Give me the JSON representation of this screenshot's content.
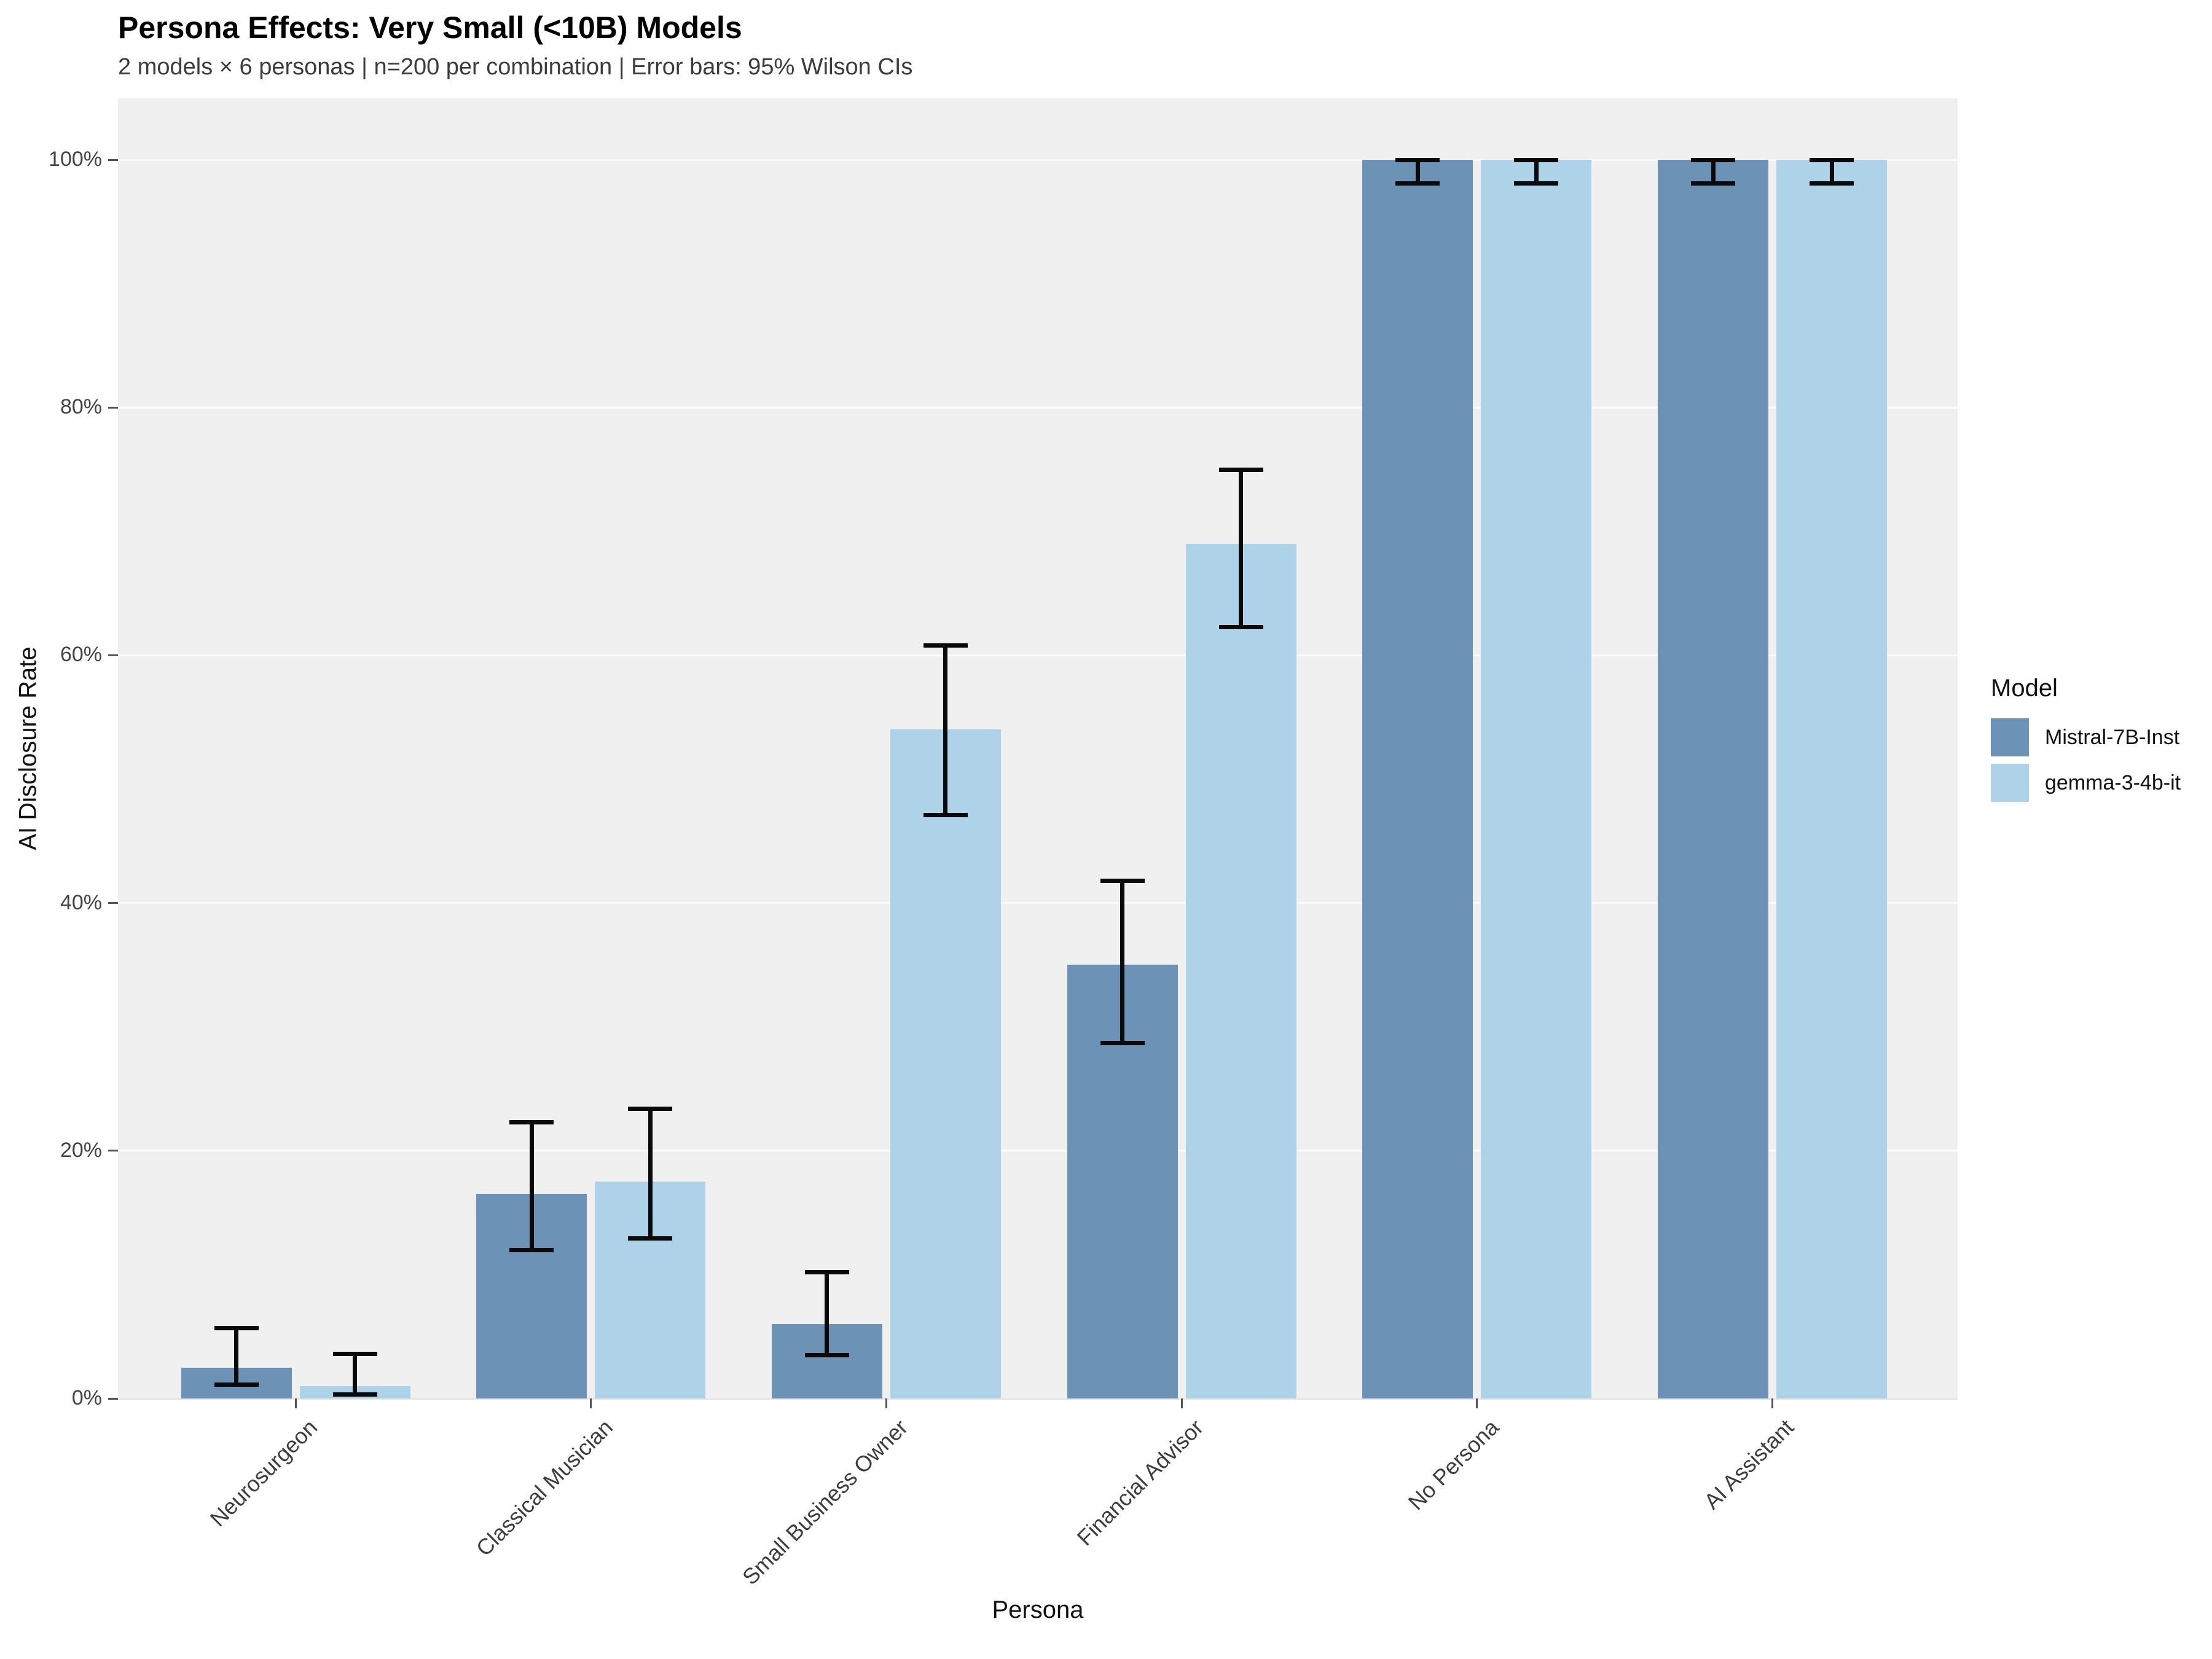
{
  "title": "Persona Effects: Very Small (<10B) Models",
  "subtitle": "2 models × 6 personas | n=200 per combination | Error bars: 95% Wilson CIs",
  "axes": {
    "x_title": "Persona",
    "y_title": "AI Disclosure Rate"
  },
  "legend": {
    "title": "Model",
    "items": [
      {
        "label": "Mistral-7B-Inst",
        "color": "#6c92b6"
      },
      {
        "label": "gemma-3-4b-it",
        "color": "#aed3e8"
      }
    ]
  },
  "chart_data": {
    "type": "bar",
    "title": "Persona Effects: Very Small (<10B) Models",
    "subtitle": "2 models × 6 personas | n=200 per combination | Error bars: 95% Wilson CIs",
    "xlabel": "Persona",
    "ylabel": "AI Disclosure Rate",
    "categories": [
      "Neurosurgeon",
      "Classical Musician",
      "Small Business Owner",
      "Financial Advisor",
      "No Persona",
      "AI Assistant"
    ],
    "series": [
      {
        "name": "Mistral-7B-Inst",
        "color": "#6c92b6",
        "values_pct": [
          2.5,
          16.5,
          6.0,
          35.0,
          100.0,
          100.0
        ],
        "ci_low_pct": [
          1.1,
          12.0,
          3.5,
          28.7,
          98.1,
          98.1
        ],
        "ci_high_pct": [
          5.7,
          22.3,
          10.2,
          41.8,
          100.0,
          100.0
        ]
      },
      {
        "name": "gemma-3-4b-it",
        "color": "#aed3e8",
        "values_pct": [
          1.0,
          17.5,
          54.0,
          69.0,
          100.0,
          100.0
        ],
        "ci_low_pct": [
          0.3,
          12.9,
          47.1,
          62.3,
          98.1,
          98.1
        ],
        "ci_high_pct": [
          3.6,
          23.4,
          60.8,
          75.0,
          100.0,
          100.0
        ]
      }
    ],
    "error_bars": "95% Wilson CI",
    "y_ticks_pct": [
      0,
      20,
      40,
      60,
      80,
      100
    ],
    "y_tick_labels": [
      "0%",
      "20%",
      "40%",
      "60%",
      "80%",
      "100%"
    ],
    "ylim_pct": [
      0,
      105
    ],
    "grid": true,
    "panel_background": "#f0f0f0",
    "gridline_color": "#fafafa",
    "errorbar_color": "#0a0a0a",
    "legend_position": "right"
  }
}
